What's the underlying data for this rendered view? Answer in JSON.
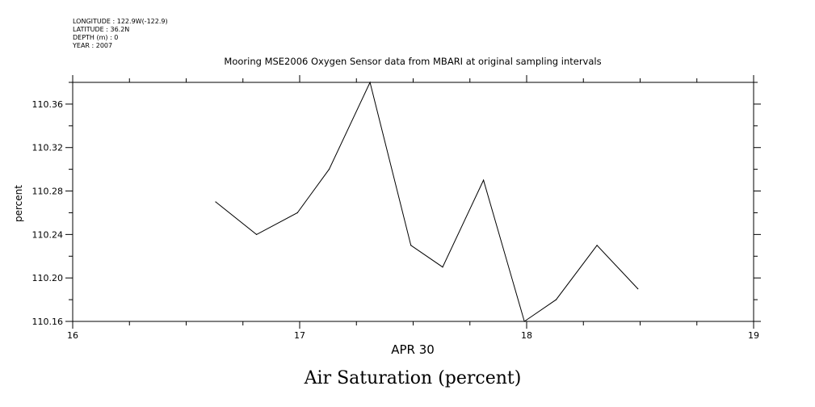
{
  "header": {
    "longitude": "LONGITUDE : 122.9W(-122.9)",
    "latitude": "LATITUDE : 36.2N",
    "depth": "DEPTH (m) : 0",
    "year": "YEAR : 2007"
  },
  "chart_data": {
    "type": "line",
    "title": "Mooring MSE2006 Oxygen Sensor data from MBARI at original sampling intervals",
    "xlabel": "APR 30",
    "ylabel": "percent",
    "caption": "Air Saturation (percent)",
    "xlim": [
      16,
      19
    ],
    "ylim": [
      110.16,
      110.38
    ],
    "x_ticks": [
      "16",
      "17",
      "18",
      "19"
    ],
    "y_ticks": [
      "110.16",
      "110.20",
      "110.24",
      "110.28",
      "110.32",
      "110.36"
    ],
    "grid": false,
    "series": [
      {
        "x": [
          16.63,
          16.81,
          16.99,
          17.13,
          17.31,
          17.49,
          17.63,
          17.81,
          17.99,
          18.13,
          18.31,
          18.49
        ],
        "y": [
          110.27,
          110.24,
          110.26,
          110.3,
          110.38,
          110.23,
          110.21,
          110.29,
          110.16,
          110.18,
          110.23,
          110.19
        ]
      }
    ]
  }
}
